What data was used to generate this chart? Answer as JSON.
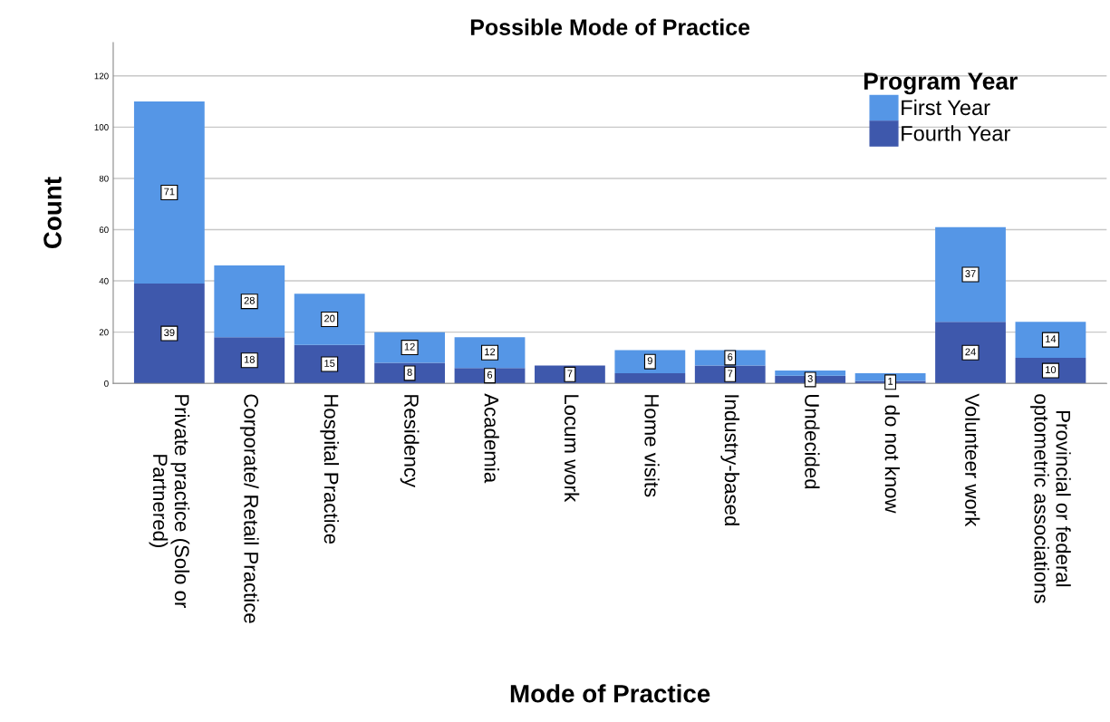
{
  "chart_data": {
    "type": "bar",
    "title": "Possible Mode of Practice",
    "xlabel": "Mode of Practice",
    "ylabel": "Count",
    "legend_title": "Program Year",
    "categories": [
      "Private practice (Solo or\nPartnered)",
      "Corporate/ Retail Practice",
      "Hospital Practice",
      "Residency",
      "Academia",
      "Locum work",
      "Home visits",
      "Industry-based",
      "Undecided",
      "I do not know",
      "Volunteer work",
      "Provincial or federal\noptometric associations"
    ],
    "stacked": true,
    "series": [
      {
        "name": "Fourth Year",
        "color": "#3e58ac",
        "values": [
          39,
          18,
          15,
          8,
          6,
          7,
          4,
          7,
          3,
          1,
          24,
          10
        ],
        "value_labels": [
          "39",
          "18",
          "15",
          "8",
          "6",
          "7",
          null,
          "7",
          "3",
          "1",
          "24",
          "10"
        ]
      },
      {
        "name": "First Year",
        "color": "#5596e6",
        "values": [
          71,
          28,
          20,
          12,
          12,
          null,
          9,
          6,
          2,
          3,
          37,
          14
        ],
        "value_labels": [
          "71",
          "28",
          "20",
          "12",
          "12",
          null,
          "9",
          "6",
          null,
          null,
          "37",
          "14"
        ]
      }
    ],
    "ylim": [
      0,
      133
    ],
    "yticks": [
      0,
      20,
      40,
      60,
      80,
      100,
      120
    ],
    "grid": "y",
    "legend": "top right"
  }
}
